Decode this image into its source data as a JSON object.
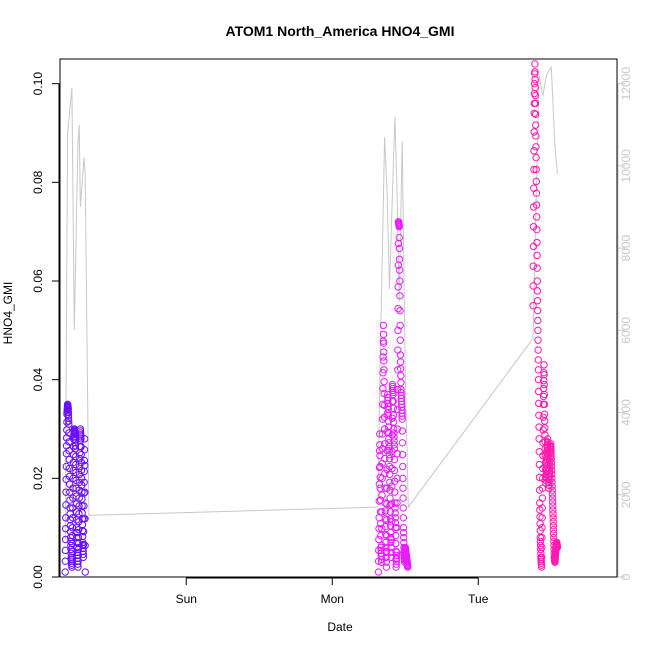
{
  "chart_data": {
    "type": "scatter",
    "title": "ATOM1 North_America HNO4_GMI",
    "xlabel": "Date",
    "ylabel": "HNO4_GMI",
    "x_tick_labels": [
      "Sun",
      "Mon",
      "Tue"
    ],
    "x_tick_positions_hours": [
      24,
      48,
      72
    ],
    "xlim_hours": [
      3.25,
      94.8
    ],
    "ylim": [
      0,
      0.105
    ],
    "y_ticks": [
      0.0,
      0.02,
      0.04,
      0.06,
      0.08,
      0.1
    ],
    "y_tick_labels": [
      "0.00",
      "0.02",
      "0.04",
      "0.06",
      "0.08",
      "0.10"
    ],
    "y2_ticks": [
      0,
      2000,
      4000,
      6000,
      8000,
      10000,
      12000
    ],
    "y2_tick_labels": [
      "0",
      "2000",
      "4000",
      "6000",
      "8000",
      "10000",
      "12000"
    ],
    "y2lim": [
      0,
      12600
    ],
    "grid": false,
    "legend": "none",
    "colors": {
      "flight1": "#6a0dff",
      "flight2": "#e71dff",
      "flight3": "#ff1aae",
      "altitude_line": "#c8c8c8",
      "axis": "#000000",
      "right_axis": "#c8c8c8"
    },
    "series": [
      {
        "role": "HNO4_GMI",
        "color": "#6a0dff",
        "x_hours": [
          4.1,
          4.2,
          4.3,
          4.4,
          4.5,
          4.6,
          4.7,
          4.8,
          4.9,
          5.0,
          5.1,
          5.2,
          5.3,
          5.4,
          5.5,
          5.6,
          5.7,
          5.8,
          5.9,
          6.0,
          6.1,
          6.2,
          6.3,
          6.4,
          6.5,
          6.6,
          6.7,
          6.8,
          6.9,
          7.0,
          7.1,
          7.2,
          7.3,
          7.4
        ],
        "values": [
          0.001,
          0.012,
          0.025,
          0.033,
          0.035,
          0.034,
          0.031,
          0.022,
          0.014,
          0.008,
          0.004,
          0.002,
          0.01,
          0.02,
          0.028,
          0.03,
          0.029,
          0.026,
          0.018,
          0.01,
          0.005,
          0.002,
          0.008,
          0.016,
          0.024,
          0.03,
          0.028,
          0.02,
          0.013,
          0.007,
          0.004,
          0.017,
          0.028,
          0.001
        ]
      },
      {
        "role": "HNO4_GMI",
        "color": "#e71dff",
        "x_hours": [
          55.6,
          55.7,
          55.8,
          55.9,
          56.0,
          56.1,
          56.2,
          56.3,
          56.4,
          56.5,
          56.6,
          56.7,
          56.8,
          56.9,
          57.0,
          57.1,
          57.2,
          57.3,
          57.4,
          57.5,
          57.6,
          57.7,
          57.8,
          57.9,
          58.0,
          58.1,
          58.2,
          58.3,
          58.4,
          58.5,
          58.6,
          58.7,
          58.8,
          58.9,
          59.0,
          59.1,
          59.2,
          59.3,
          59.4,
          59.5,
          59.6,
          59.7,
          59.8,
          59.9,
          60.0,
          60.1,
          60.2,
          60.3,
          60.4
        ],
        "values": [
          0.001,
          0.012,
          0.029,
          0.018,
          0.006,
          0.003,
          0.02,
          0.035,
          0.051,
          0.042,
          0.03,
          0.015,
          0.007,
          0.002,
          0.018,
          0.037,
          0.034,
          0.028,
          0.024,
          0.016,
          0.009,
          0.004,
          0.022,
          0.039,
          0.037,
          0.03,
          0.026,
          0.015,
          0.01,
          0.002,
          0.005,
          0.03,
          0.05,
          0.072,
          0.071,
          0.06,
          0.045,
          0.038,
          0.035,
          0.032,
          0.02,
          0.01,
          0.005,
          0.003,
          0.006,
          0.005,
          0.004,
          0.003,
          0.002
        ]
      },
      {
        "role": "HNO4_GMI",
        "color": "#ff1aae",
        "x_hours": [
          81.0,
          81.1,
          81.2,
          81.3,
          81.4,
          81.5,
          81.6,
          81.7,
          81.8,
          81.9,
          82.0,
          82.1,
          82.2,
          82.3,
          82.4,
          82.5,
          82.6,
          82.7,
          82.8,
          82.9,
          83.0,
          83.1,
          83.2,
          83.3,
          83.4,
          83.5,
          83.6,
          83.7,
          83.8,
          83.9,
          84.0,
          84.1,
          84.2,
          84.3,
          84.4,
          84.5,
          84.6,
          84.7,
          84.8,
          84.9,
          85.0
        ],
        "values": [
          0.055,
          0.075,
          0.094,
          0.104,
          0.096,
          0.085,
          0.073,
          0.06,
          0.05,
          0.04,
          0.028,
          0.015,
          0.008,
          0.004,
          0.002,
          0.012,
          0.022,
          0.035,
          0.043,
          0.033,
          0.026,
          0.019,
          0.022,
          0.025,
          0.028,
          0.024,
          0.018,
          0.021,
          0.025,
          0.027,
          0.024,
          0.02,
          0.016,
          0.012,
          0.008,
          0.004,
          0.003,
          0.005,
          0.006,
          0.007,
          0.006
        ]
      }
    ],
    "altitude_line": {
      "role": "altitude",
      "color": "#c8c8c8",
      "x_hours": [
        4.1,
        4.5,
        5.2,
        5.6,
        6.2,
        6.4,
        6.6,
        7.2,
        7.4,
        8.0,
        55.5,
        55.8,
        56.2,
        56.6,
        57.0,
        57.4,
        57.8,
        58.3,
        58.6,
        59.0,
        59.5,
        60.0,
        60.5,
        81.0,
        81.4,
        82.0,
        82.6,
        83.2,
        84.0,
        84.6,
        85.0
      ],
      "values": [
        900,
        10800,
        11900,
        6000,
        10500,
        11000,
        9000,
        10200,
        9800,
        1500,
        1700,
        4700,
        7700,
        10700,
        9400,
        7000,
        8900,
        11200,
        9600,
        6700,
        10600,
        4900,
        1700,
        5800,
        8500,
        12200,
        11700,
        12200,
        12400,
        10500,
        9800
      ]
    }
  }
}
